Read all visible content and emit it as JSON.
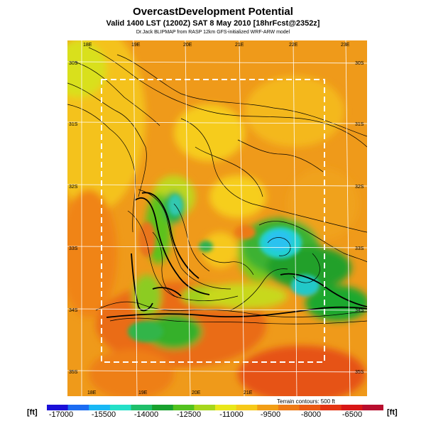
{
  "header": {
    "title": "OvercastDevelopment Potential",
    "subtitle": "Valid 1400 LST (1200Z) SAT 8 May 2010 [18hrFcst@2352z]",
    "credit": "Dr.Jack BLIPMAP from RASP 12km GFS-initialized WRF-ARW model"
  },
  "map": {
    "lon_top": [
      "18E",
      "19E",
      "20E",
      "21E",
      "22E",
      "23E"
    ],
    "lon_bottom": [
      "18E",
      "19E",
      "20E",
      "21E"
    ],
    "lat_left": [
      "30S",
      "31S",
      "32S",
      "33S",
      "34S",
      "35S"
    ],
    "lat_right": [
      "30S",
      "31S",
      "32S",
      "33S",
      "34S",
      "35S"
    ],
    "terrain_note": "Terrain contours: 500 ft"
  },
  "colorbar": {
    "unit": "[ft]",
    "ticks": [
      "-17000",
      "-15500",
      "-14000",
      "-12500",
      "-11000",
      "-9500",
      "-8000",
      "-6500"
    ],
    "colors": [
      "#1b10d8",
      "#1c6cf2",
      "#19b8f5",
      "#24e0c8",
      "#1fbf6a",
      "#18a12e",
      "#53c21f",
      "#a6d71c",
      "#e9e71a",
      "#f6c919",
      "#f29e16",
      "#ee7a16",
      "#ea5a14",
      "#e43412",
      "#d81616",
      "#b80e2e"
    ]
  }
}
